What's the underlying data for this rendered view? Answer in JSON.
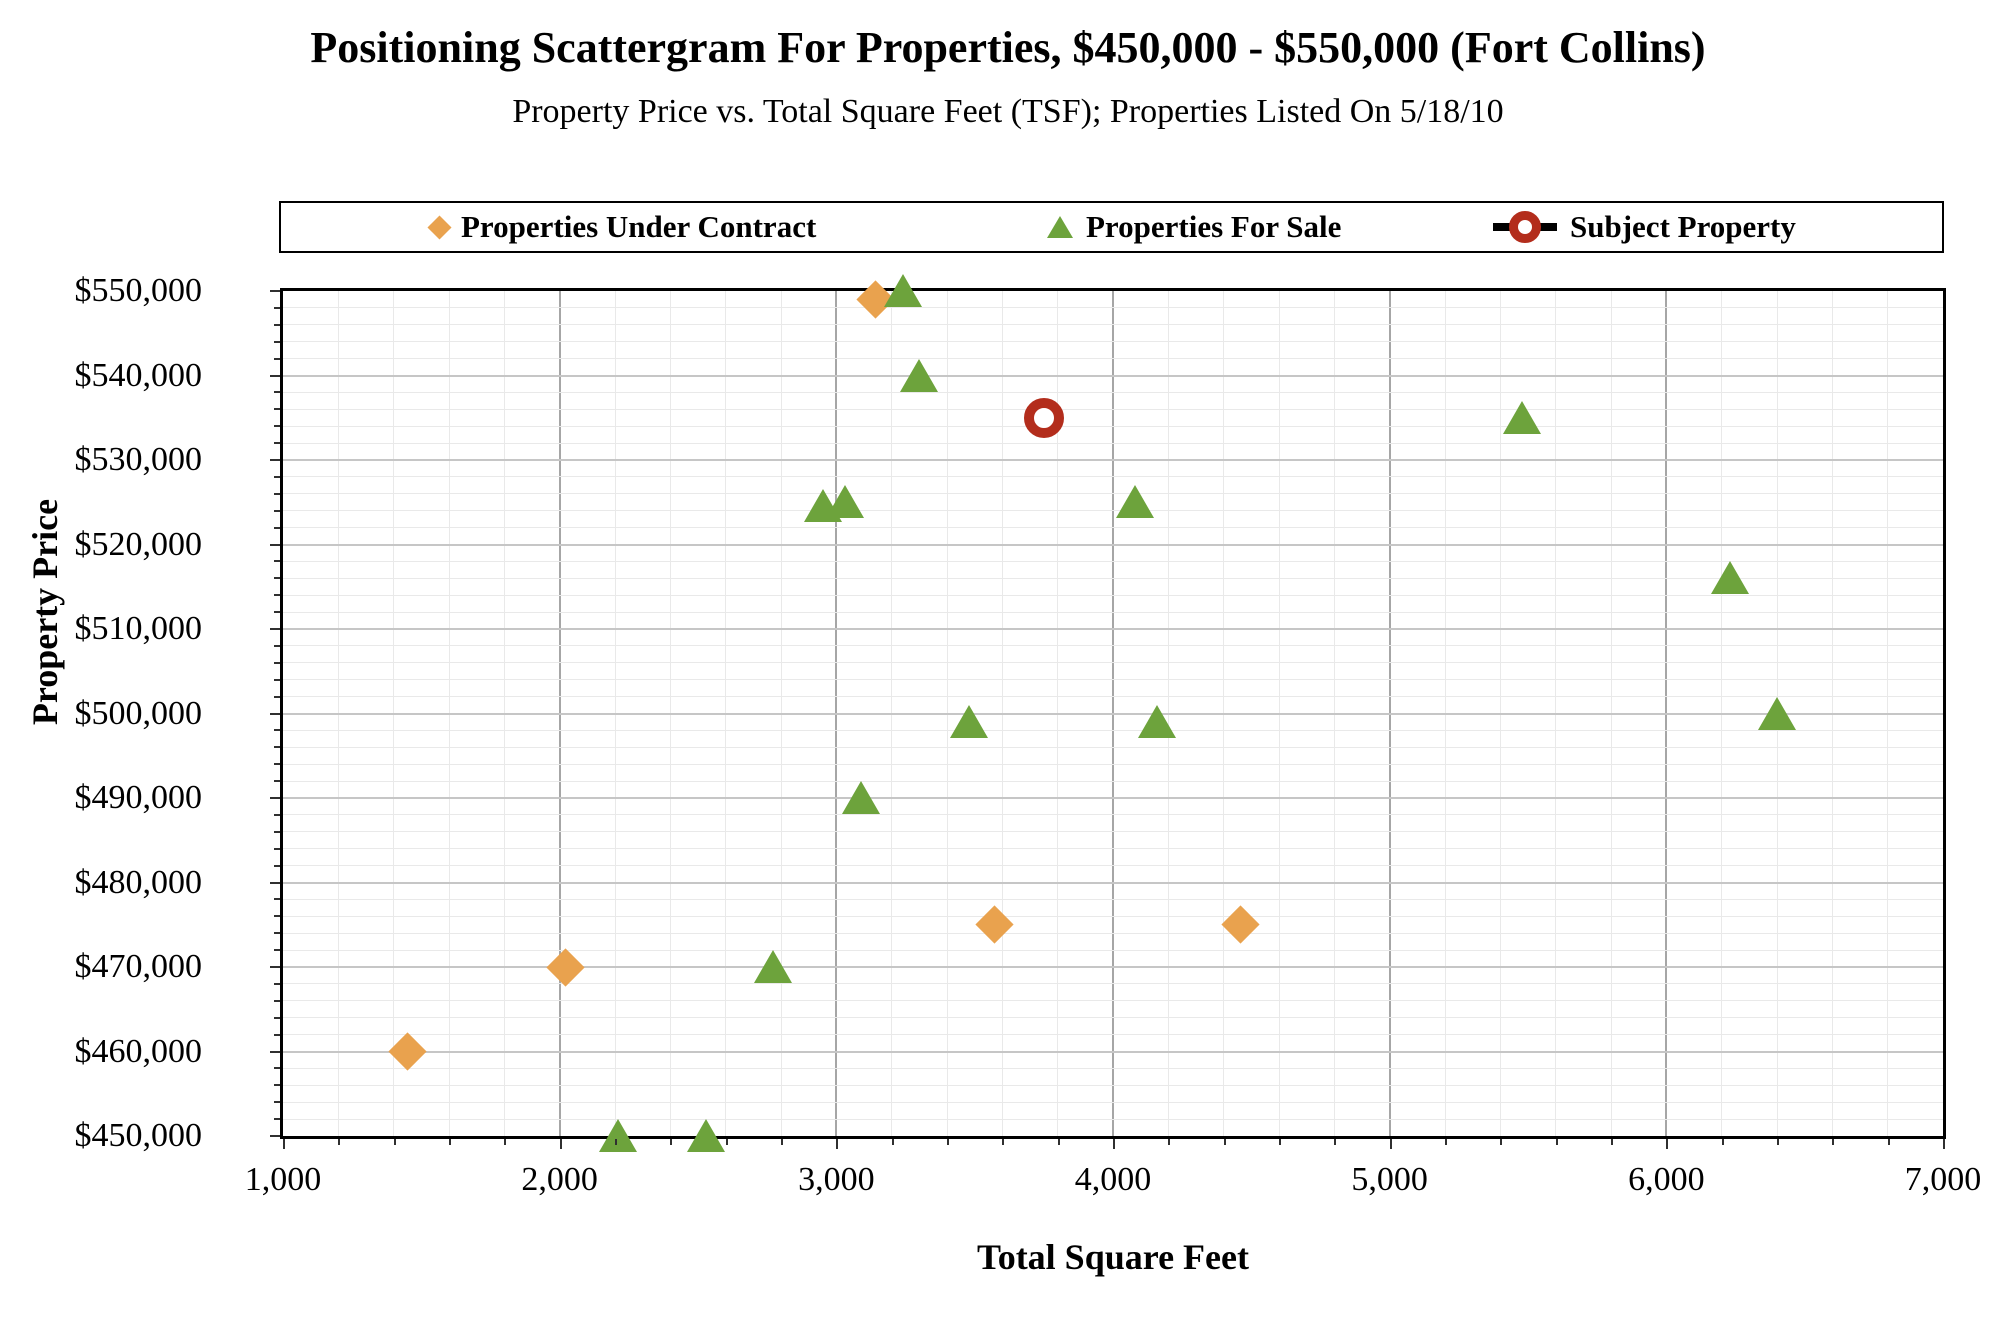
{
  "chart_data": {
    "type": "scatter",
    "title": "Positioning Scattergram For Properties, $450,000 - $550,000 (Fort Collins)",
    "subtitle": "Property Price vs. Total Square Feet (TSF); Properties Listed On 5/18/10",
    "xlabel": "Total Square Feet",
    "ylabel": "Property Price",
    "grid": "major and minor, both axes",
    "legend_position": "top",
    "x_axis": {
      "min": 1000,
      "max": 7000,
      "major": 1000,
      "minor": 200,
      "ticks": [
        {
          "v": 1000,
          "label": "1,000"
        },
        {
          "v": 2000,
          "label": "2,000"
        },
        {
          "v": 3000,
          "label": "3,000"
        },
        {
          "v": 4000,
          "label": "4,000"
        },
        {
          "v": 5000,
          "label": "5,000"
        },
        {
          "v": 6000,
          "label": "6,000"
        },
        {
          "v": 7000,
          "label": "7,000"
        }
      ]
    },
    "y_axis": {
      "min": 450000,
      "max": 550000,
      "major": 10000,
      "minor": 2000,
      "ticks": [
        {
          "v": 450000,
          "label": "$450,000"
        },
        {
          "v": 460000,
          "label": "$460,000"
        },
        {
          "v": 470000,
          "label": "$470,000"
        },
        {
          "v": 480000,
          "label": "$480,000"
        },
        {
          "v": 490000,
          "label": "$490,000"
        },
        {
          "v": 500000,
          "label": "$500,000"
        },
        {
          "v": 510000,
          "label": "$510,000"
        },
        {
          "v": 520000,
          "label": "$520,000"
        },
        {
          "v": 530000,
          "label": "$530,000"
        },
        {
          "v": 540000,
          "label": "$540,000"
        },
        {
          "v": 550000,
          "label": "$550,000"
        }
      ]
    },
    "series": [
      {
        "name": "Properties Under Contract",
        "marker": "diamond",
        "color": "#E9A24E",
        "points": [
          [
            1450,
            460000
          ],
          [
            2020,
            470000
          ],
          [
            3140,
            549000
          ],
          [
            3570,
            475000
          ],
          [
            4460,
            475000
          ]
        ]
      },
      {
        "name": "Properties For Sale",
        "marker": "triangle",
        "color": "#6DA33C",
        "points": [
          [
            2210,
            450000
          ],
          [
            2530,
            450000
          ],
          [
            2770,
            470000
          ],
          [
            2950,
            524500
          ],
          [
            3030,
            525000
          ],
          [
            3090,
            490000
          ],
          [
            3240,
            550000
          ],
          [
            3300,
            540000
          ],
          [
            3480,
            499000
          ],
          [
            4080,
            525000
          ],
          [
            4160,
            499000
          ],
          [
            5480,
            535000
          ],
          [
            6230,
            516000
          ],
          [
            6400,
            500000
          ]
        ]
      },
      {
        "name": "Subject Property",
        "marker": "ring",
        "color": "#B32D1C",
        "points": [
          [
            3750,
            535000
          ]
        ]
      }
    ]
  }
}
